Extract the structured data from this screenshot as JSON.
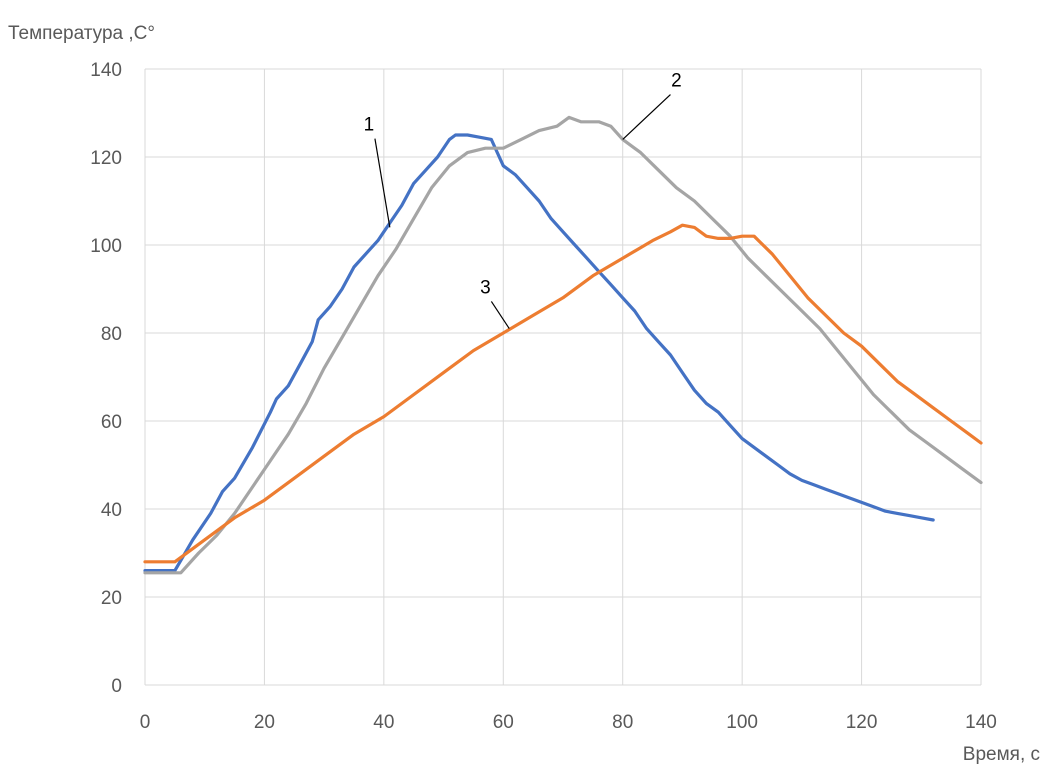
{
  "chart_data": {
    "type": "line",
    "title": "",
    "ylabel": "Температура ,С°",
    "xlabel": "Время, с",
    "xlim": [
      0,
      140
    ],
    "ylim": [
      0,
      140
    ],
    "x_ticks": [
      "0",
      "20",
      "40",
      "60",
      "80",
      "100",
      "120",
      "140"
    ],
    "y_ticks": [
      "0",
      "20",
      "40",
      "60",
      "80",
      "100",
      "120",
      "140"
    ],
    "grid": true,
    "legend": "none",
    "series": [
      {
        "name": "1",
        "color": "#4472C4",
        "x": [
          0,
          5,
          8,
          11,
          13,
          15,
          18,
          21,
          22,
          24,
          26,
          28,
          29,
          31,
          33,
          35,
          37,
          39,
          41,
          43,
          45,
          47,
          49,
          51,
          52,
          54,
          56,
          58,
          59,
          60,
          62,
          64,
          66,
          68,
          70,
          72,
          74,
          76,
          78,
          80,
          82,
          84,
          86,
          88,
          90,
          92,
          94,
          96,
          98,
          100,
          102,
          104,
          106,
          108,
          110,
          112,
          114,
          116,
          118,
          120,
          122,
          124,
          126,
          128,
          130,
          132
        ],
        "y": [
          26,
          26,
          33,
          39,
          44,
          47,
          54,
          62,
          65,
          68,
          73,
          78,
          83,
          86,
          90,
          95,
          98,
          101,
          105,
          109,
          114,
          117,
          120,
          124,
          125,
          125,
          124.5,
          124,
          121,
          118,
          116,
          113,
          110,
          106,
          103,
          100,
          97,
          94,
          91,
          88,
          85,
          81,
          78,
          75,
          71,
          67,
          64,
          62,
          59,
          56,
          54,
          52,
          50,
          48,
          46.5,
          45.5,
          44.5,
          43.5,
          42.5,
          41.5,
          40.5,
          39.5,
          39,
          38.5,
          38,
          37.5
        ]
      },
      {
        "name": "2",
        "color": "#A5A5A5",
        "x": [
          0,
          6,
          9,
          12,
          15,
          18,
          21,
          24,
          27,
          30,
          33,
          36,
          39,
          42,
          45,
          48,
          51,
          54,
          57,
          60,
          63,
          66,
          69,
          71,
          73,
          76,
          78,
          80,
          83,
          86,
          89,
          92,
          95,
          98,
          101,
          104,
          107,
          110,
          113,
          116,
          119,
          122,
          125,
          128,
          131,
          134,
          137,
          140
        ],
        "y": [
          25.5,
          25.5,
          30,
          34,
          39,
          45,
          51,
          57,
          64,
          72,
          79,
          86,
          93,
          99,
          106,
          113,
          118,
          121,
          122,
          122,
          124,
          126,
          127,
          129,
          128,
          128,
          127,
          124,
          121,
          117,
          113,
          110,
          106,
          102,
          97,
          93,
          89,
          85,
          81,
          76,
          71,
          66,
          62,
          58,
          55,
          52,
          49,
          46
        ]
      },
      {
        "name": "3",
        "color": "#ED7D31",
        "x": [
          0,
          5,
          10,
          15,
          20,
          25,
          30,
          35,
          40,
          45,
          50,
          55,
          60,
          65,
          70,
          75,
          80,
          85,
          88,
          90,
          92,
          94,
          96,
          98,
          100,
          102,
          105,
          108,
          111,
          114,
          117,
          120,
          123,
          126,
          129,
          132,
          135,
          138,
          140
        ],
        "y": [
          28,
          28,
          33,
          38,
          42,
          47,
          52,
          57,
          61,
          66,
          71,
          76,
          80,
          84,
          88,
          93,
          97,
          101,
          103,
          104.5,
          104,
          102,
          101.5,
          101.5,
          102,
          102,
          98,
          93,
          88,
          84,
          80,
          77,
          73,
          69,
          66,
          63,
          60,
          57,
          55
        ]
      }
    ],
    "annotations": [
      {
        "text": "1",
        "label_x": 37.5,
        "label_y": 126,
        "tip_x": 41,
        "tip_y": 104
      },
      {
        "text": "2",
        "label_x": 89,
        "label_y": 136,
        "tip_x": 80,
        "tip_y": 124
      },
      {
        "text": "3",
        "label_x": 57,
        "label_y": 89,
        "tip_x": 61,
        "tip_y": 81
      }
    ]
  }
}
